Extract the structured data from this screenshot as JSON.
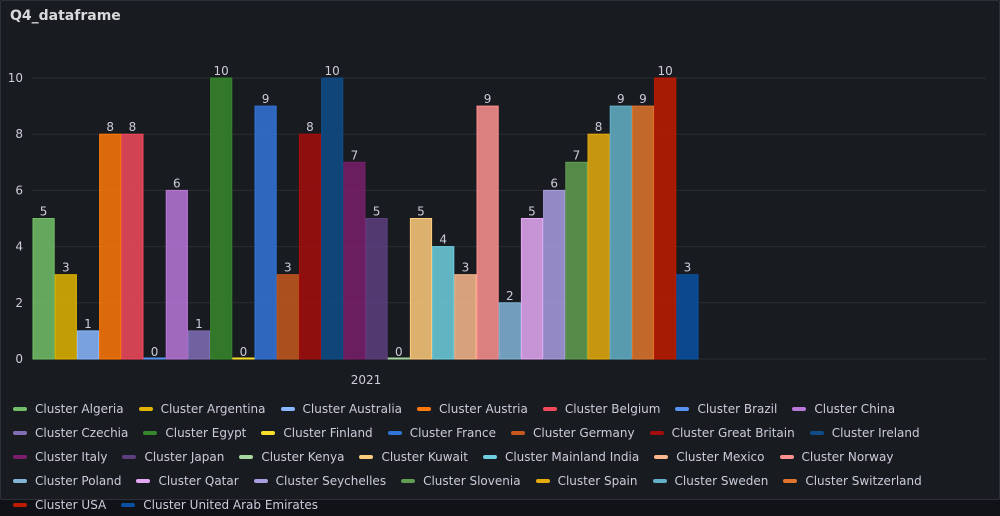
{
  "panel": {
    "title": "Q4_dataframe"
  },
  "chart_data": {
    "type": "bar",
    "title": "Q4_dataframe",
    "categories": [
      "2021"
    ],
    "ylim": [
      0,
      10
    ],
    "yticks": [
      0,
      2,
      4,
      6,
      8,
      10
    ],
    "grid": true,
    "legend_position": "bottom",
    "series": [
      {
        "name": "Cluster Algeria",
        "values": [
          5
        ],
        "color": "#73bf69"
      },
      {
        "name": "Cluster Argentina",
        "values": [
          3
        ],
        "color": "#e0b400"
      },
      {
        "name": "Cluster Australia",
        "values": [
          1
        ],
        "color": "#8ab8ff"
      },
      {
        "name": "Cluster Austria",
        "values": [
          8
        ],
        "color": "#ff780a"
      },
      {
        "name": "Cluster Belgium",
        "values": [
          8
        ],
        "color": "#f2495c"
      },
      {
        "name": "Cluster Brazil",
        "values": [
          0
        ],
        "color": "#5794f2"
      },
      {
        "name": "Cluster China",
        "values": [
          6
        ],
        "color": "#b877d9"
      },
      {
        "name": "Cluster Czechia",
        "values": [
          1
        ],
        "color": "#806eb7"
      },
      {
        "name": "Cluster Egypt",
        "values": [
          10
        ],
        "color": "#37872d"
      },
      {
        "name": "Cluster Finland",
        "values": [
          0
        ],
        "color": "#fade2a"
      },
      {
        "name": "Cluster France",
        "values": [
          9
        ],
        "color": "#3274d9"
      },
      {
        "name": "Cluster Germany",
        "values": [
          3
        ],
        "color": "#c4581d"
      },
      {
        "name": "Cluster Great Britain",
        "values": [
          8
        ],
        "color": "#a50d0d"
      },
      {
        "name": "Cluster Ireland",
        "values": [
          10
        ],
        "color": "#0f4c8a"
      },
      {
        "name": "Cluster Italy",
        "values": [
          7
        ],
        "color": "#7a1e6b"
      },
      {
        "name": "Cluster Japan",
        "values": [
          5
        ],
        "color": "#5d3f80"
      },
      {
        "name": "Cluster Kenya",
        "values": [
          0
        ],
        "color": "#a5d79f"
      },
      {
        "name": "Cluster Kuwait",
        "values": [
          5
        ],
        "color": "#ffcb7d"
      },
      {
        "name": "Cluster Mainland India",
        "values": [
          4
        ],
        "color": "#6ed0e0"
      },
      {
        "name": "Cluster Mexico",
        "values": [
          3
        ],
        "color": "#f9b98d"
      },
      {
        "name": "Cluster Norway",
        "values": [
          9
        ],
        "color": "#ff9090"
      },
      {
        "name": "Cluster Poland",
        "values": [
          2
        ],
        "color": "#82b5d8"
      },
      {
        "name": "Cluster Qatar",
        "values": [
          5
        ],
        "color": "#e5a8f4"
      },
      {
        "name": "Cluster Seychelles",
        "values": [
          6
        ],
        "color": "#a99ee0"
      },
      {
        "name": "Cluster Slovenia",
        "values": [
          7
        ],
        "color": "#629e51"
      },
      {
        "name": "Cluster Spain",
        "values": [
          8
        ],
        "color": "#e5ac0e"
      },
      {
        "name": "Cluster Sweden",
        "values": [
          9
        ],
        "color": "#64b0c8"
      },
      {
        "name": "Cluster Switzerland",
        "values": [
          9
        ],
        "color": "#e0752d"
      },
      {
        "name": "Cluster USA",
        "values": [
          10
        ],
        "color": "#bf1b00"
      },
      {
        "name": "Cluster United Arab Emirates",
        "values": [
          3
        ],
        "color": "#0a50a1"
      }
    ]
  }
}
